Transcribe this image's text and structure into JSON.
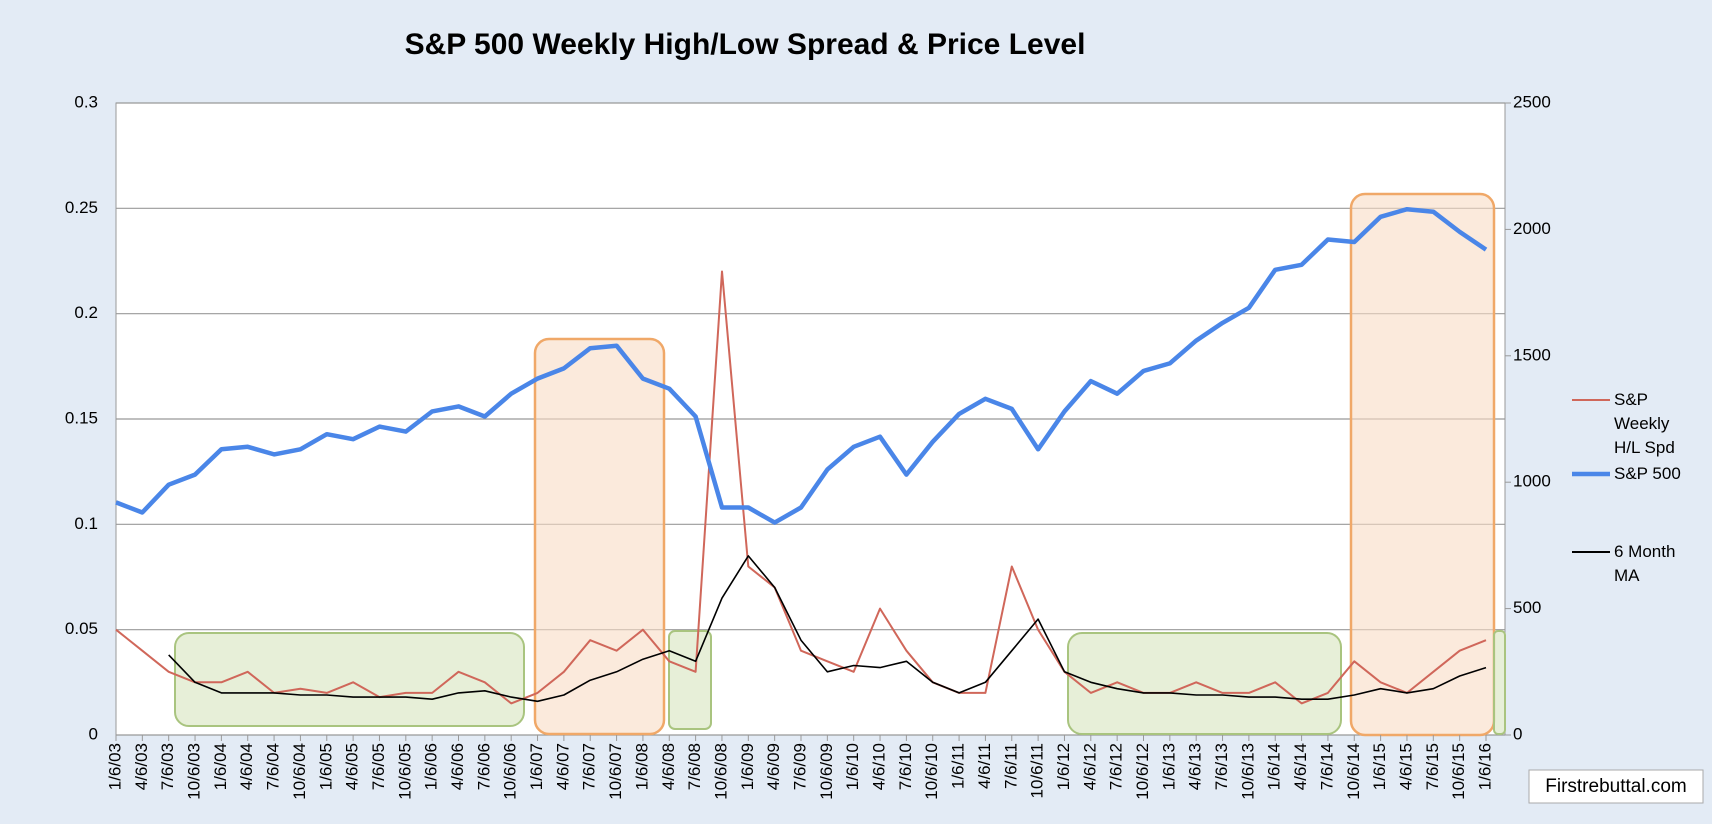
{
  "chart_data": {
    "type": "line",
    "title": "S&P 500 Weekly High/Low Spread & Price Level",
    "categories": [
      "1/6/03",
      "4/6/03",
      "7/6/03",
      "10/6/03",
      "1/6/04",
      "4/6/04",
      "7/6/04",
      "10/6/04",
      "1/6/05",
      "4/6/05",
      "7/6/05",
      "10/6/05",
      "1/6/06",
      "4/6/06",
      "7/6/06",
      "10/6/06",
      "1/6/07",
      "4/6/07",
      "7/6/07",
      "10/6/07",
      "1/6/08",
      "4/6/08",
      "7/6/08",
      "10/6/08",
      "1/6/09",
      "4/6/09",
      "7/6/09",
      "10/6/09",
      "1/6/10",
      "4/6/10",
      "7/6/10",
      "10/6/10",
      "1/6/11",
      "4/6/11",
      "7/6/11",
      "10/6/11",
      "1/6/12",
      "4/6/12",
      "7/6/12",
      "10/6/12",
      "1/6/13",
      "4/6/13",
      "7/6/13",
      "10/6/13",
      "1/6/14",
      "4/6/14",
      "7/6/14",
      "10/6/14",
      "1/6/15",
      "4/6/15",
      "7/6/15",
      "10/6/15",
      "1/6/16"
    ],
    "series": [
      {
        "name": "S&P Weekly H/L Spd",
        "color": "#d0675a",
        "values": [
          0.05,
          0.04,
          0.03,
          0.025,
          0.025,
          0.03,
          0.02,
          0.022,
          0.02,
          0.025,
          0.018,
          0.02,
          0.02,
          0.03,
          0.025,
          0.015,
          0.02,
          0.03,
          0.045,
          0.04,
          0.05,
          0.035,
          0.03,
          0.22,
          0.08,
          0.07,
          0.04,
          0.035,
          0.03,
          0.06,
          0.04,
          0.025,
          0.02,
          0.02,
          0.08,
          0.05,
          0.03,
          0.02,
          0.025,
          0.02,
          0.02,
          0.025,
          0.02,
          0.02,
          0.025,
          0.015,
          0.02,
          0.035,
          0.025,
          0.02,
          0.03,
          0.04,
          0.045
        ]
      },
      {
        "name": "S&P 500",
        "color": "#4a86e8",
        "axis": "y2",
        "values": [
          920,
          880,
          990,
          1030,
          1130,
          1140,
          1110,
          1130,
          1190,
          1170,
          1220,
          1200,
          1280,
          1300,
          1260,
          1350,
          1410,
          1450,
          1530,
          1540,
          1410,
          1370,
          1260,
          900,
          900,
          840,
          900,
          1050,
          1140,
          1180,
          1030,
          1160,
          1270,
          1330,
          1290,
          1130,
          1280,
          1400,
          1350,
          1440,
          1470,
          1560,
          1630,
          1690,
          1840,
          1860,
          1960,
          1950,
          2050,
          2080,
          2070,
          1990,
          1920
        ]
      },
      {
        "name": "6 Month MA",
        "color": "#000000",
        "values": [
          null,
          null,
          0.038,
          0.025,
          0.02,
          0.02,
          0.02,
          0.019,
          0.019,
          0.018,
          0.018,
          0.018,
          0.017,
          0.02,
          0.021,
          0.018,
          0.016,
          0.019,
          0.026,
          0.03,
          0.036,
          0.04,
          0.035,
          0.065,
          0.085,
          0.07,
          0.045,
          0.03,
          0.033,
          0.032,
          0.035,
          0.025,
          0.02,
          0.025,
          0.04,
          0.055,
          0.03,
          0.025,
          0.022,
          0.02,
          0.02,
          0.019,
          0.019,
          0.018,
          0.018,
          0.017,
          0.017,
          0.019,
          0.022,
          0.02,
          0.022,
          0.028,
          0.032
        ]
      }
    ],
    "ylim": [
      0,
      0.3
    ],
    "yticks": [
      0,
      0.05,
      0.1,
      0.15,
      0.2,
      0.25,
      0.3
    ],
    "y2lim": [
      0,
      2500
    ],
    "y2ticks": [
      0,
      500,
      1000,
      1500,
      2000,
      2500
    ],
    "grid": true,
    "legend": "right"
  },
  "watermark": "Firstrebuttal.com"
}
